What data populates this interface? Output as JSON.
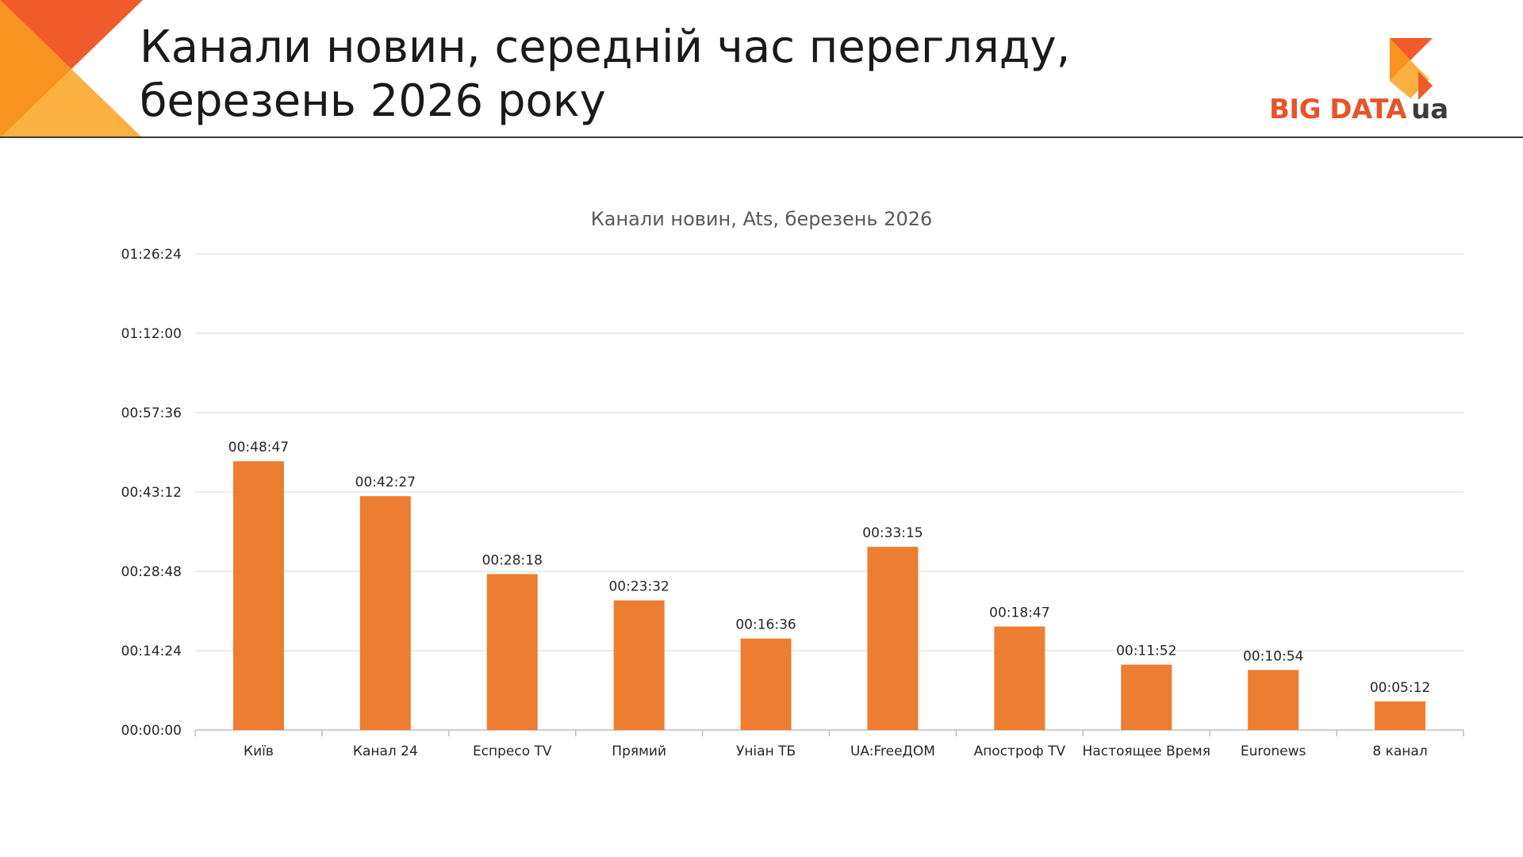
{
  "header": {
    "title_line1": "Канали новин, середній час перегляду,",
    "title_line2": "березень 2026 року"
  },
  "logo": {
    "text_big": "BIG DATA",
    "text_ua": "ua"
  },
  "colors": {
    "bar": "#ED7D31",
    "grid": "#D9D9D9",
    "axis": "#BFBFBF",
    "deco_dark": "#F15A2B",
    "deco_mid": "#F7931E",
    "deco_light": "#FBB040"
  },
  "chart_data": {
    "type": "bar",
    "title": "Канали новин, Ats, березень 2026",
    "xlabel": "",
    "ylabel": "",
    "categories": [
      "Київ",
      "Канал 24",
      "Еспресо TV",
      "Прямий",
      "Уніан ТБ",
      "UA:FreeДОМ",
      "Апостроф TV",
      "Настоящее Время",
      "Euronews",
      "8 канал"
    ],
    "values_seconds": [
      2927,
      2547,
      1698,
      1412,
      996,
      1995,
      1127,
      712,
      654,
      312
    ],
    "value_labels": [
      "00:48:47",
      "00:42:27",
      "00:28:18",
      "00:23:32",
      "00:16:36",
      "00:33:15",
      "00:18:47",
      "00:11:52",
      "00:10:54",
      "00:05:12"
    ],
    "ylim_seconds": [
      0,
      5184
    ],
    "y_ticks_seconds": [
      0,
      864,
      1728,
      2592,
      3456,
      4320,
      5184
    ],
    "y_tick_labels": [
      "00:00:00",
      "00:14:24",
      "00:28:48",
      "00:43:12",
      "00:57:36",
      "01:12:00",
      "01:26:24"
    ],
    "grid": true,
    "legend": "none"
  }
}
